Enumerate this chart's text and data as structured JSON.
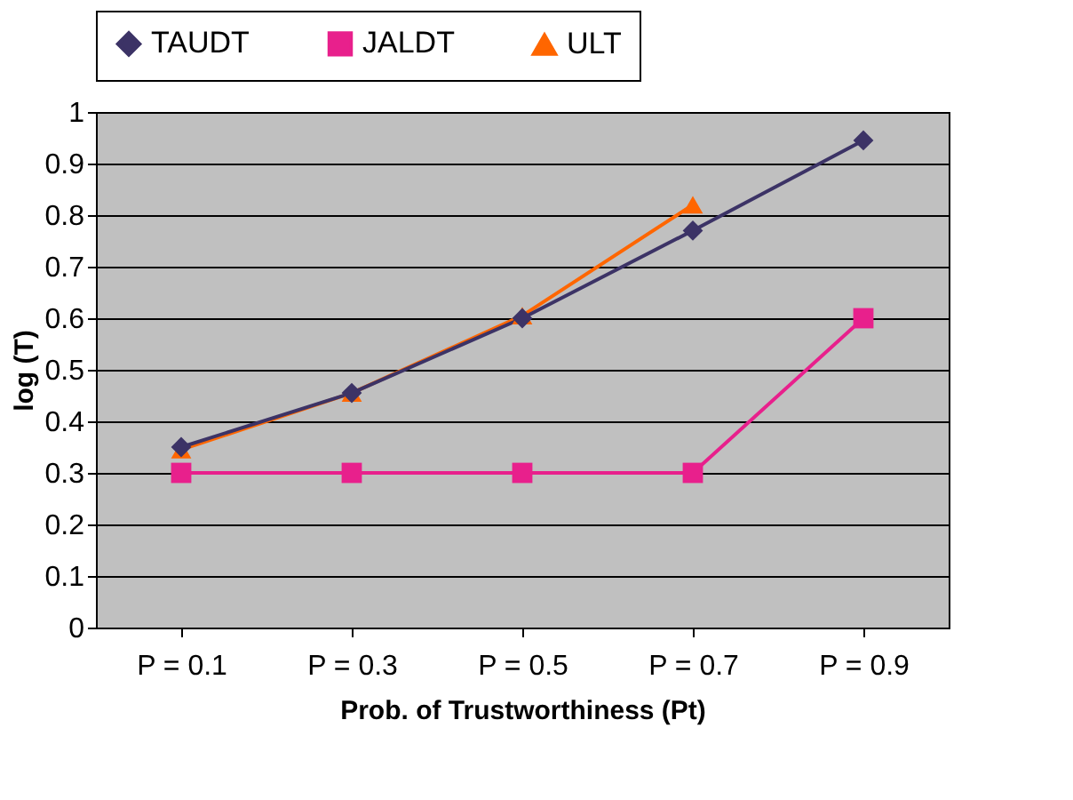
{
  "chart_data": {
    "type": "line",
    "xlabel": "Prob. of Trustworthiness (Pt)",
    "ylabel": "log (T)",
    "categories": [
      "P = 0.1",
      "P = 0.3",
      "P = 0.5",
      "P = 0.7",
      "P = 0.9"
    ],
    "series": [
      {
        "name": "TAUDT",
        "color": "#3c3366",
        "marker": "diamond",
        "values": [
          0.35,
          0.455,
          0.6,
          0.77,
          0.945
        ]
      },
      {
        "name": "JALDT",
        "color": "#e8208c",
        "marker": "square",
        "values": [
          0.3,
          0.3,
          0.3,
          0.3,
          0.6
        ]
      },
      {
        "name": "ULT",
        "color": "#ff6600",
        "marker": "triangle",
        "values": [
          0.345,
          0.455,
          0.605,
          0.82,
          null
        ]
      }
    ],
    "ylim": [
      0,
      1
    ],
    "yticks": [
      0,
      0.1,
      0.2,
      0.3,
      0.4,
      0.5,
      0.6,
      0.7,
      0.8,
      0.9,
      1
    ],
    "grid": "y",
    "legend": "top",
    "line_style": "solid"
  }
}
